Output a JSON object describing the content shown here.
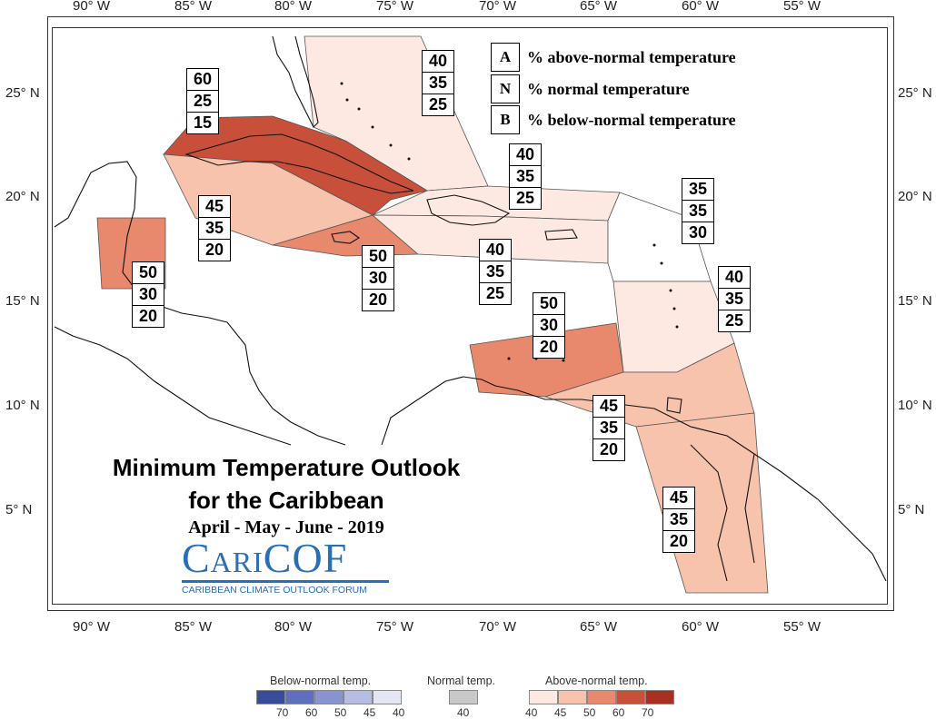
{
  "map": {
    "title_line1": "Minimum Temperature Outlook",
    "title_line2": "for the Caribbean",
    "period": "April - May - June - 2019",
    "logo_text": "CariCOF",
    "logo_subtitle": "CARIBBEAN CLIMATE OUTLOOK FORUM",
    "top_axis": [
      "90° W",
      "85° W",
      "80° W",
      "75° W",
      "70° W",
      "65° W",
      "60° W",
      "55° W"
    ],
    "bottom_axis": [
      "90° W",
      "85° W",
      "80° W",
      "75° W",
      "70° W",
      "65° W",
      "60° W",
      "55° W"
    ],
    "left_axis": [
      "25° N",
      "20° N",
      "15° N",
      "10° N",
      "5° N"
    ],
    "right_axis": [
      "25° N",
      "20° N",
      "15° N",
      "10° N",
      "5° N"
    ]
  },
  "key": [
    {
      "letter": "A",
      "text": "% above-normal temperature"
    },
    {
      "letter": "N",
      "text": "% normal temperature"
    },
    {
      "letter": "B",
      "text": "% below-normal temperature"
    }
  ],
  "zones": [
    {
      "id": "bahamas",
      "A": "40",
      "N": "35",
      "B": "25",
      "color": "#fde9e1"
    },
    {
      "id": "cuba",
      "A": "60",
      "N": "25",
      "B": "15",
      "color": "#c8503a"
    },
    {
      "id": "cayman-west",
      "A": "45",
      "N": "35",
      "B": "20",
      "color": "#f7c3ad"
    },
    {
      "id": "jamaica",
      "A": "50",
      "N": "30",
      "B": "20",
      "color": "#e8886c"
    },
    {
      "id": "belize",
      "A": "50",
      "N": "30",
      "B": "20",
      "color": "#e8886c"
    },
    {
      "id": "hispaniola-north",
      "A": "40",
      "N": "35",
      "B": "25",
      "color": "#fde9e1"
    },
    {
      "id": "puerto-rico",
      "A": "40",
      "N": "35",
      "B": "25",
      "color": "#fde9e1"
    },
    {
      "id": "leeward",
      "A": "35",
      "N": "35",
      "B": "30",
      "color": "#ffffff"
    },
    {
      "id": "windward",
      "A": "40",
      "N": "35",
      "B": "25",
      "color": "#fde9e1"
    },
    {
      "id": "abc-islands",
      "A": "50",
      "N": "30",
      "B": "20",
      "color": "#e8886c"
    },
    {
      "id": "trinidad",
      "A": "45",
      "N": "35",
      "B": "20",
      "color": "#f7c3ad"
    },
    {
      "id": "guianas",
      "A": "45",
      "N": "35",
      "B": "20",
      "color": "#f7c3ad"
    }
  ],
  "legend": {
    "below_title": "Below-normal temp.",
    "normal_title": "Normal temp.",
    "above_title": "Above-normal temp.",
    "below_colors": [
      "#3a4b9a",
      "#5f6fbd",
      "#8a93cf",
      "#b7bce2",
      "#e4e6f5"
    ],
    "below_labels": [
      "70",
      "60",
      "50",
      "45",
      "40"
    ],
    "normal_color": "#c8c8c8",
    "normal_label": "40",
    "above_colors": [
      "#fde9e1",
      "#f7c3ad",
      "#e8886c",
      "#c8503a",
      "#a73020"
    ],
    "above_labels": [
      "40",
      "45",
      "50",
      "60",
      "70"
    ]
  }
}
